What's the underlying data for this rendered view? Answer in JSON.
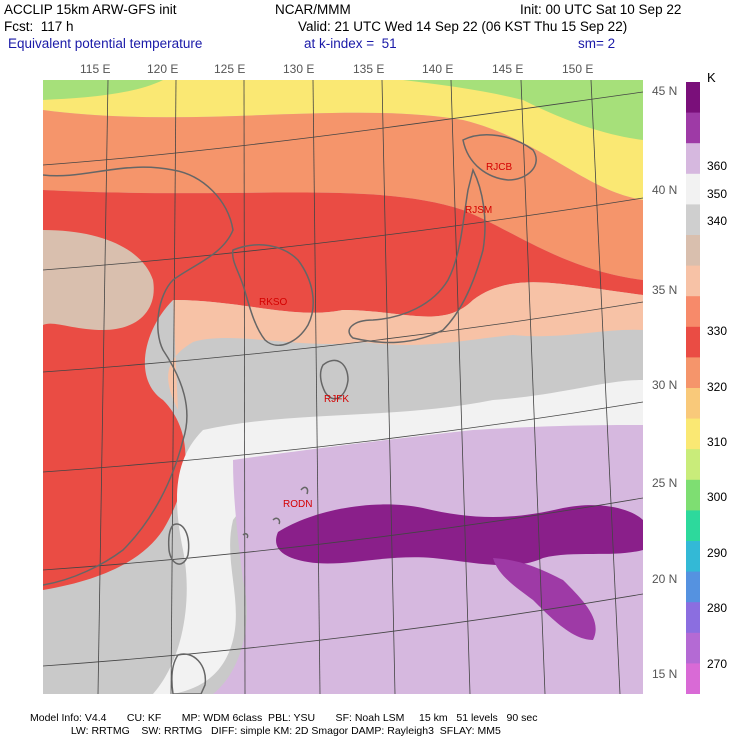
{
  "header": {
    "line1_left": "ACCLIP 15km ARW-GFS init",
    "line1_mid": "NCAR/MMM",
    "line1_right": "Init: 00 UTC Sat 10 Sep 22",
    "line2_left": "Fcst:  117 h",
    "line2_right": "Valid: 21 UTC Wed 14 Sep 22 (06 KST Thu 15 Sep 22)",
    "line3_field": "Equivalent potential temperature",
    "line3_kindex": "at k-index =  51",
    "line3_sm": "sm= 2"
  },
  "map": {
    "lon_labels": [
      "115 E",
      "120 E",
      "125 E",
      "130 E",
      "135 E",
      "140 E",
      "145 E",
      "150 E"
    ],
    "lat_labels": [
      "45 N",
      "40 N",
      "35 N",
      "30 N",
      "25 N",
      "20 N",
      "15 N"
    ],
    "stations": [
      "RJCB",
      "RJSM",
      "RKSO",
      "RJFK",
      "RODN"
    ]
  },
  "colorbar": {
    "unit": "K",
    "tick_labels": [
      "360",
      "350",
      "340",
      "330",
      "320",
      "310",
      "300",
      "290",
      "280",
      "270"
    ],
    "colors": [
      "#7a0f7a",
      "#9e3aa6",
      "#d6b8df",
      "#f2f2f2",
      "#cfcfcf",
      "#d9bfae",
      "#f7c2a6",
      "#f78a6a",
      "#ea4c44",
      "#f5956b",
      "#f9c97a",
      "#fae873",
      "#c9ec7a",
      "#7ede72",
      "#2dd99c",
      "#33b9d6",
      "#5592e0",
      "#8b6ee0",
      "#b46ad4",
      "#d96ad6"
    ]
  },
  "footer": {
    "line1": "Model Info: V4.4       CU: KF       MP: WDM 6class  PBL: YSU       SF: Noah LSM     15 km   51 levels   90 sec",
    "line2": "              LW: RRTMG    SW: RRTMG   DIFF: simple KM: 2D Smagor DAMP: Rayleigh3  SFLAY: MM5"
  }
}
